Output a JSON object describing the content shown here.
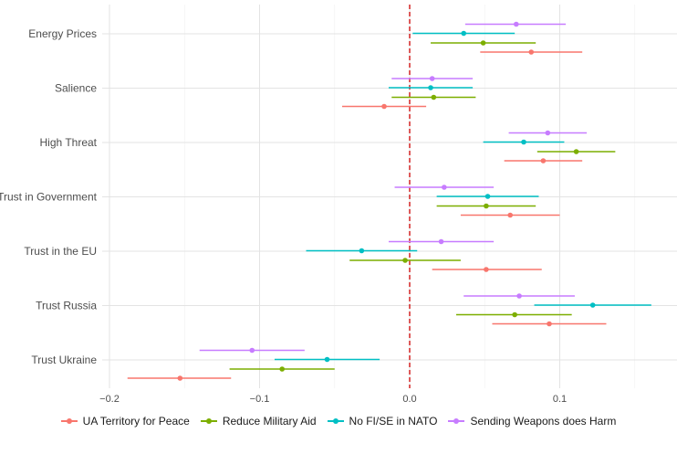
{
  "chart_data": {
    "type": "scatter",
    "subtype": "forest-plot (point estimate with confidence interval)",
    "title": "",
    "xlabel": "",
    "ylabel": "",
    "xlim": [
      -0.2,
      0.175
    ],
    "x_ticks": [
      -0.2,
      -0.1,
      0.0,
      0.1
    ],
    "x_tick_labels": [
      "−0.2",
      "−0.1",
      "0.0",
      "0.1"
    ],
    "grid": true,
    "reference_line": {
      "x": 0,
      "style": "dashed",
      "color": "#cc0000"
    },
    "legend_position": "bottom",
    "categories": [
      "Energy Prices",
      "Salience",
      "High Threat",
      "Trust in Government",
      "Trust in the EU",
      "Trust Russia",
      "Trust Ukraine"
    ],
    "series": [
      {
        "name": "UA Territory for Peace",
        "color": "#F8766D",
        "estimates": [
          0.081,
          -0.017,
          0.089,
          0.067,
          0.051,
          0.093,
          -0.153
        ],
        "ci_low": [
          0.047,
          -0.045,
          0.063,
          0.034,
          0.015,
          0.055,
          -0.188
        ],
        "ci_high": [
          0.115,
          0.011,
          0.115,
          0.1,
          0.088,
          0.131,
          -0.119
        ]
      },
      {
        "name": "Reduce Military Aid",
        "color": "#7CAE00",
        "estimates": [
          0.049,
          0.016,
          0.111,
          0.051,
          -0.003,
          0.07,
          -0.085
        ],
        "ci_low": [
          0.014,
          -0.012,
          0.085,
          0.018,
          -0.04,
          0.031,
          -0.12
        ],
        "ci_high": [
          0.084,
          0.044,
          0.137,
          0.084,
          0.034,
          0.108,
          -0.05
        ]
      },
      {
        "name": "No FI/SE in NATO",
        "color": "#00BFC4",
        "estimates": [
          0.036,
          0.014,
          0.076,
          0.052,
          -0.032,
          0.122,
          -0.055
        ],
        "ci_low": [
          0.002,
          -0.014,
          0.049,
          0.018,
          -0.069,
          0.083,
          -0.09
        ],
        "ci_high": [
          0.07,
          0.042,
          0.103,
          0.086,
          0.005,
          0.161,
          -0.02
        ]
      },
      {
        "name": "Sending Weapons does Harm",
        "color": "#C77CFF",
        "estimates": [
          0.071,
          0.015,
          0.092,
          0.023,
          0.021,
          0.073,
          -0.105
        ],
        "ci_low": [
          0.037,
          -0.012,
          0.066,
          -0.01,
          -0.014,
          0.036,
          -0.14
        ],
        "ci_high": [
          0.104,
          0.042,
          0.118,
          0.056,
          0.056,
          0.11,
          -0.07
        ]
      }
    ]
  }
}
